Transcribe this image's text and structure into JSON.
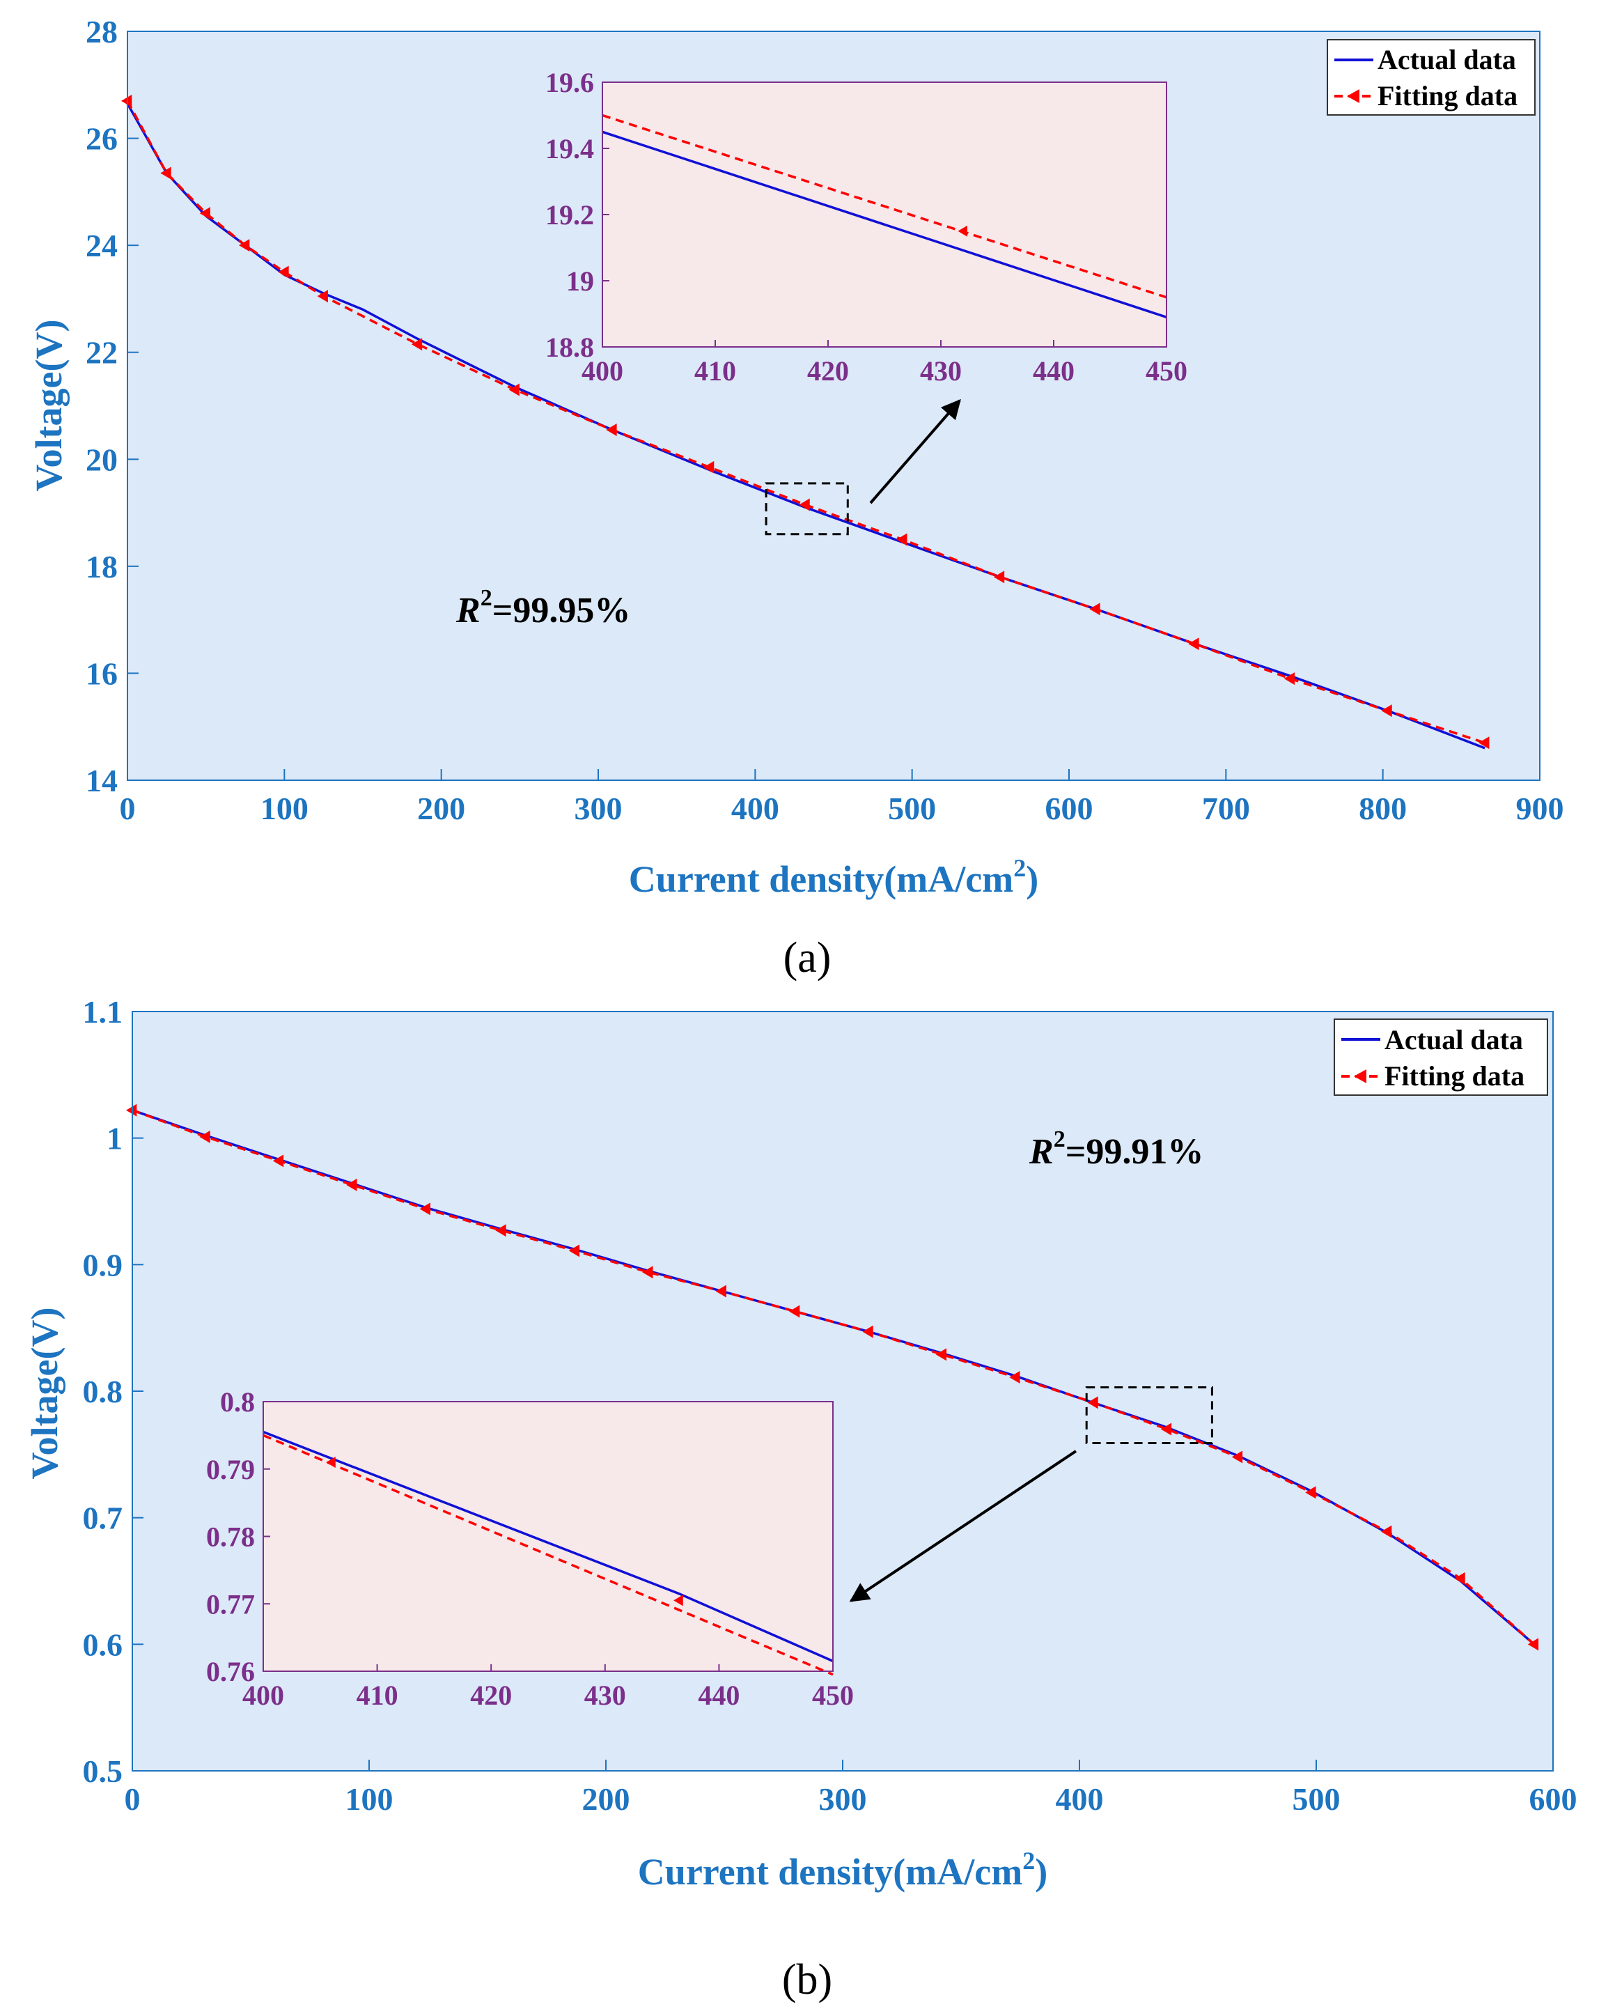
{
  "colors": {
    "plot_bg": "#dce9f8",
    "inset_bg": "#f7e8ea",
    "axis_main": "#1d74c0",
    "axis_inset": "#7b2f8a",
    "actual": "#1010d6",
    "fitting": "#ff0000"
  },
  "chart_data": [
    {
      "type": "line",
      "panel_label": "(a)",
      "xlabel": "Current density(mA/cm",
      "xlabel_sup": "2",
      "xlabel_end": ")",
      "ylabel": "Voltage(V)",
      "xlim": [
        0,
        900
      ],
      "ylim": [
        14,
        28
      ],
      "xticks": [
        "0",
        "100",
        "200",
        "300",
        "400",
        "500",
        "600",
        "700",
        "800",
        "900"
      ],
      "yticks": [
        "14",
        "16",
        "18",
        "20",
        "22",
        "24",
        "26",
        "28"
      ],
      "legend": [
        "Actual data",
        "Fitting data"
      ],
      "legend_position": "top-right",
      "annotation": {
        "italic": "R",
        "sup": "2",
        "text": "=99.95%"
      },
      "series": [
        {
          "name": "Actual data",
          "style": "solid",
          "x": [
            0,
            25,
            50,
            75,
            100,
            125,
            150,
            185,
            247,
            309,
            371,
            432,
            494,
            556,
            617,
            680,
            741,
            803,
            865
          ],
          "y": [
            26.65,
            25.35,
            24.55,
            24.0,
            23.45,
            23.1,
            22.8,
            22.25,
            21.35,
            20.55,
            19.8,
            19.1,
            18.45,
            17.8,
            17.2,
            16.55,
            15.95,
            15.3,
            14.6
          ]
        },
        {
          "name": "Fitting data",
          "style": "dashed",
          "x": [
            0,
            25,
            50,
            75,
            100,
            125,
            185,
            247,
            309,
            371,
            432,
            494,
            556,
            617,
            680,
            741,
            803,
            865
          ],
          "y": [
            26.7,
            25.35,
            24.6,
            24.0,
            23.5,
            23.05,
            22.15,
            21.3,
            20.55,
            19.85,
            19.15,
            18.5,
            17.8,
            17.2,
            16.55,
            15.9,
            15.3,
            14.7
          ]
        }
      ],
      "inset": {
        "xlim": [
          400,
          450
        ],
        "ylim": [
          18.8,
          19.6
        ],
        "xticks": [
          "400",
          "410",
          "420",
          "430",
          "440",
          "450"
        ],
        "yticks": [
          "18.8",
          "19",
          "19.2",
          "19.4",
          "19.6"
        ],
        "series": [
          {
            "name": "Actual data",
            "x": [
              400,
              450
            ],
            "y": [
              19.45,
              18.89
            ]
          },
          {
            "name": "Fitting data",
            "x": [
              400,
              450
            ],
            "y": [
              19.5,
              18.95
            ],
            "markers_x": [
              432
            ],
            "markers_y": [
              19.15
            ]
          }
        ],
        "zoom_box": {
          "x": [
            407,
            459
          ],
          "y": [
            18.6,
            19.55
          ]
        }
      }
    },
    {
      "type": "line",
      "panel_label": "(b)",
      "xlabel": "Current density(mA/cm",
      "xlabel_sup": "2",
      "xlabel_end": ")",
      "ylabel": "Voltage(V)",
      "xlim": [
        0,
        600
      ],
      "ylim": [
        0.5,
        1.1
      ],
      "xticks": [
        "0",
        "100",
        "200",
        "300",
        "400",
        "500",
        "600"
      ],
      "yticks": [
        "0.5",
        "0.6",
        "0.7",
        "0.8",
        "0.9",
        "1",
        "1.1"
      ],
      "legend": [
        "Actual data",
        "Fitting data"
      ],
      "legend_position": "top-right",
      "annotation": {
        "italic": "R",
        "sup": "2",
        "text": "=99.91%"
      },
      "series": [
        {
          "name": "Actual data",
          "style": "solid",
          "x": [
            0,
            31,
            62,
            93,
            124,
            156,
            187,
            218,
            249,
            280,
            311,
            342,
            373,
            404,
            436,
            467,
            498,
            530,
            561,
            592
          ],
          "y": [
            1.022,
            1.002,
            0.983,
            0.964,
            0.945,
            0.928,
            0.912,
            0.895,
            0.879,
            0.863,
            0.847,
            0.83,
            0.812,
            0.792,
            0.772,
            0.749,
            0.721,
            0.688,
            0.65,
            0.6
          ]
        },
        {
          "name": "Fitting data",
          "style": "dashed",
          "x": [
            0,
            31,
            62,
            93,
            124,
            156,
            187,
            218,
            249,
            280,
            311,
            342,
            373,
            406,
            437,
            467,
            498,
            530,
            561,
            592
          ],
          "y": [
            1.022,
            1.001,
            0.982,
            0.963,
            0.944,
            0.927,
            0.911,
            0.894,
            0.879,
            0.863,
            0.847,
            0.829,
            0.811,
            0.791,
            0.77,
            0.748,
            0.72,
            0.689,
            0.652,
            0.6
          ]
        }
      ],
      "inset": {
        "xlim": [
          400,
          450
        ],
        "ylim": [
          0.76,
          0.8
        ],
        "xticks": [
          "400",
          "410",
          "420",
          "430",
          "440",
          "450"
        ],
        "yticks": [
          "0.76",
          "0.77",
          "0.78",
          "0.79",
          "0.8"
        ],
        "series": [
          {
            "name": "Actual data",
            "x": [
              400,
              436.5,
              450
            ],
            "y": [
              0.7955,
              0.7715,
              0.7615
            ]
          },
          {
            "name": "Fitting data",
            "x": [
              400,
              450
            ],
            "y": [
              0.795,
              0.7595
            ],
            "markers_x": [
              406,
              436.5
            ],
            "markers_y": [
              0.791,
              0.7705
            ]
          }
        ],
        "zoom_box": {
          "x": [
            403,
            456
          ],
          "y": [
            0.759,
            0.803
          ]
        }
      }
    }
  ]
}
